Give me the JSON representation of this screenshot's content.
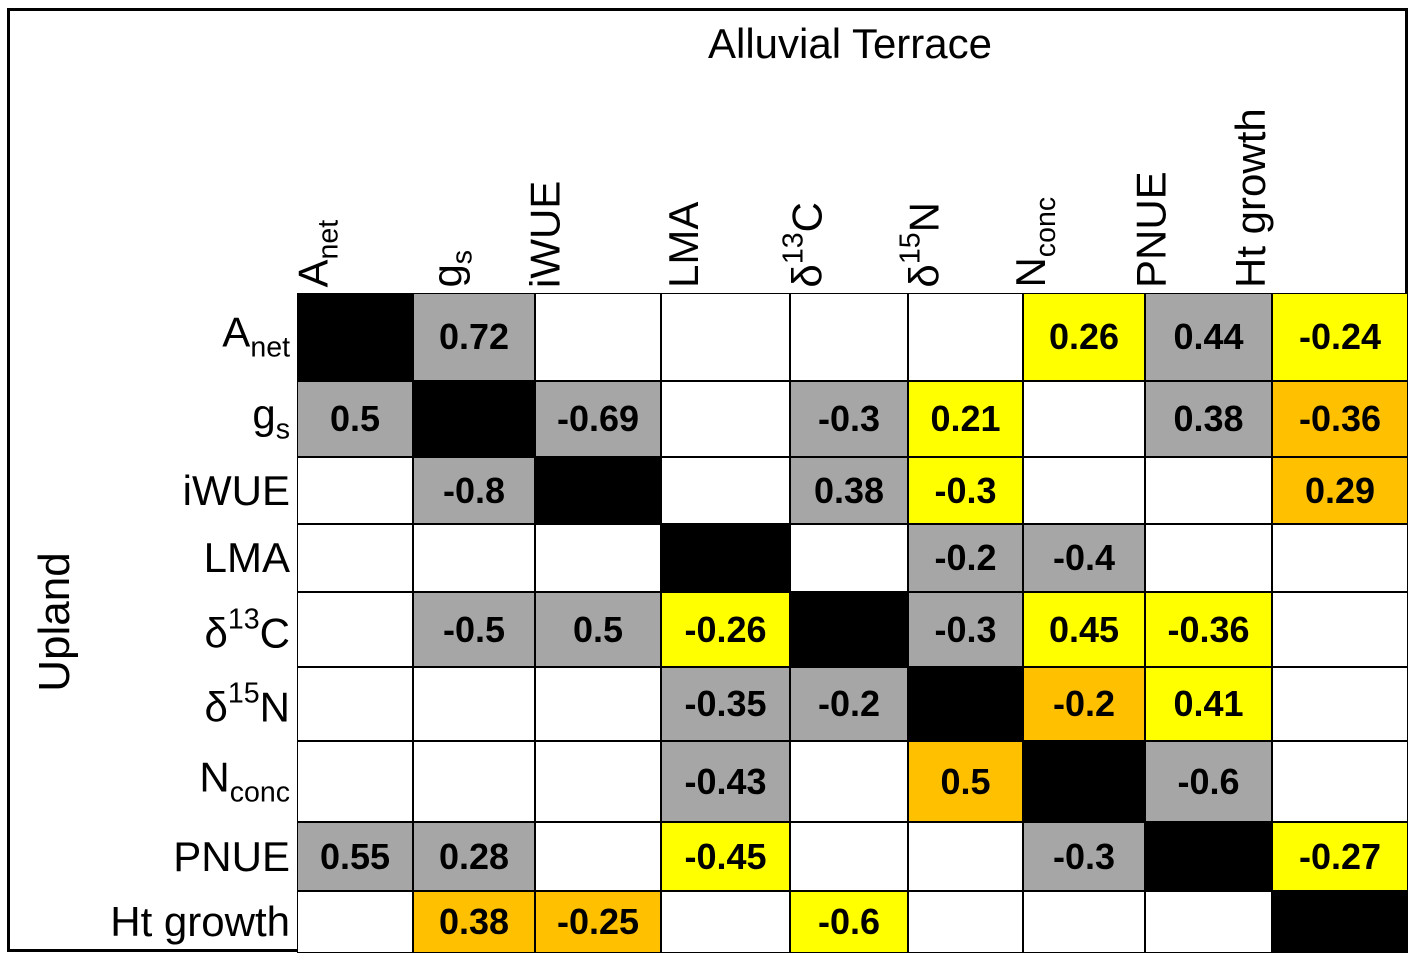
{
  "chart_data": {
    "type": "table",
    "title": "Alluvial Terrace",
    "row_axis_label": "Upland",
    "labels": [
      {
        "base": "A",
        "sub": "net"
      },
      {
        "base": "g",
        "sub": "s"
      },
      {
        "base": "iWUE"
      },
      {
        "base": "LMA"
      },
      {
        "pre": "δ",
        "sup": "13",
        "base": "C"
      },
      {
        "pre": "δ",
        "sup": "15",
        "base": "N"
      },
      {
        "base": "N",
        "sub": "conc"
      },
      {
        "base": "PNUE"
      },
      {
        "base": "Ht growth"
      }
    ],
    "matrix": [
      [
        null,
        "0.72",
        null,
        null,
        null,
        null,
        "0.26",
        "0.44",
        "-0.24"
      ],
      [
        "0.5",
        null,
        "-0.69",
        null,
        "-0.3",
        "0.21",
        null,
        "0.38",
        "-0.36"
      ],
      [
        null,
        "-0.8",
        null,
        null,
        "0.38",
        "-0.3",
        null,
        null,
        "0.29"
      ],
      [
        null,
        null,
        null,
        null,
        null,
        "-0.2",
        "-0.4",
        null,
        null
      ],
      [
        null,
        "-0.5",
        "0.5",
        "-0.26",
        null,
        "-0.3",
        "0.45",
        "-0.36",
        null
      ],
      [
        null,
        null,
        null,
        "-0.35",
        "-0.2",
        null,
        "-0.2",
        "0.41",
        null
      ],
      [
        null,
        null,
        null,
        "-0.43",
        null,
        "0.5",
        null,
        "-0.6",
        null
      ],
      [
        "0.55",
        "0.28",
        null,
        "-0.45",
        null,
        null,
        "-0.3",
        null,
        "-0.27"
      ],
      [
        null,
        "0.38",
        "-0.25",
        null,
        "-0.6",
        null,
        null,
        null,
        null
      ]
    ],
    "fills": [
      [
        "diag",
        "gray",
        "white",
        "white",
        "white",
        "white",
        "yellow",
        "gray",
        "yellow"
      ],
      [
        "gray",
        "diag",
        "gray",
        "white",
        "gray",
        "yellow",
        "white",
        "gray",
        "orange"
      ],
      [
        "white",
        "gray",
        "diag",
        "white",
        "gray",
        "yellow",
        "white",
        "white",
        "orange"
      ],
      [
        "white",
        "white",
        "white",
        "diag",
        "white",
        "gray",
        "gray",
        "white",
        "white"
      ],
      [
        "white",
        "gray",
        "gray",
        "yellow",
        "diag",
        "gray",
        "yellow",
        "yellow",
        "white"
      ],
      [
        "white",
        "white",
        "white",
        "gray",
        "gray",
        "diag",
        "orange",
        "yellow",
        "white"
      ],
      [
        "white",
        "white",
        "white",
        "gray",
        "white",
        "orange",
        "diag",
        "gray",
        "white"
      ],
      [
        "gray",
        "gray",
        "white",
        "yellow",
        "white",
        "white",
        "gray",
        "diag",
        "yellow"
      ],
      [
        "white",
        "orange",
        "orange",
        "white",
        "yellow",
        "white",
        "white",
        "white",
        "diag"
      ]
    ],
    "colors": {
      "diag": "#000000",
      "gray": "#a6a6a6",
      "yellow": "#ffff00",
      "orange": "#ffc000",
      "white": "#ffffff"
    }
  }
}
